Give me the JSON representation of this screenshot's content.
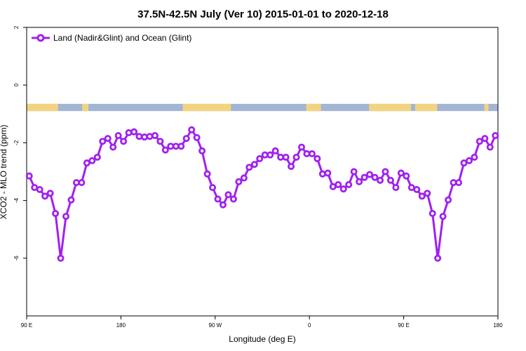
{
  "chart_data": {
    "type": "line",
    "title": "37.5N-42.5N July (Ver 10)   2015-01-01 to 2020-12-18",
    "xlabel": "Longitude (deg E)",
    "ylabel": "XCO2 - MLO trend (ppm)",
    "xlim": [
      90,
      540
    ],
    "ylim": [
      -8,
      2
    ],
    "x_ticks": [
      {
        "value": 90,
        "label": "90 E"
      },
      {
        "value": 180,
        "label": "180"
      },
      {
        "value": 270,
        "label": "90 W"
      },
      {
        "value": 360,
        "label": "0"
      },
      {
        "value": 450,
        "label": "90 E"
      },
      {
        "value": 540,
        "label": "180"
      }
    ],
    "y_ticks": [
      {
        "value": 2,
        "label": "2"
      },
      {
        "value": 0,
        "label": "0"
      },
      {
        "value": -2,
        "label": "-2"
      },
      {
        "value": -4,
        "label": "-4"
      },
      {
        "value": -6,
        "label": "-6"
      }
    ],
    "legend": {
      "placement": "top-left"
    },
    "series": [
      {
        "name": "Land (Nadir&Glint) and Ocean (Glint)",
        "color": "#a020f0",
        "x": [
          92.5,
          97.5,
          102.5,
          107.5,
          112.5,
          117.5,
          122.5,
          127.5,
          132.5,
          137.5,
          142.5,
          147.5,
          152.5,
          157.5,
          162.5,
          167.5,
          172.5,
          177.5,
          182.5,
          187.5,
          192.5,
          197.5,
          202.5,
          207.5,
          212.5,
          217.5,
          222.5,
          227.5,
          232.5,
          237.5,
          242.5,
          247.5,
          252.5,
          257.5,
          262.5,
          267.5,
          272.5,
          277.5,
          282.5,
          287.5,
          292.5,
          297.5,
          302.5,
          307.5,
          312.5,
          317.5,
          322.5,
          327.5,
          332.5,
          337.5,
          342.5,
          347.5,
          352.5,
          357.5,
          362.5,
          367.5,
          372.5,
          377.5,
          382.5,
          387.5,
          392.5,
          397.5,
          402.5,
          407.5,
          412.5,
          417.5,
          422.5,
          427.5,
          432.5,
          437.5,
          442.5,
          447.5,
          452.5,
          457.5,
          462.5,
          467.5,
          472.5,
          477.5,
          482.5,
          487.5,
          492.5,
          497.5,
          502.5,
          507.5,
          512.5,
          517.5,
          522.5,
          527.5,
          532.5,
          537.5
        ],
        "values": [
          -3.15,
          -3.55,
          -3.62,
          -3.85,
          -3.75,
          -4.45,
          -6.0,
          -4.55,
          -3.98,
          -3.38,
          -3.38,
          -2.7,
          -2.62,
          -2.5,
          -1.95,
          -1.85,
          -2.15,
          -1.75,
          -1.95,
          -1.65,
          -1.62,
          -1.78,
          -1.8,
          -1.78,
          -1.75,
          -1.95,
          -2.25,
          -2.12,
          -2.12,
          -2.12,
          -1.85,
          -1.55,
          -1.82,
          -2.28,
          -3.08,
          -3.55,
          -3.95,
          -4.15,
          -3.8,
          -3.95,
          -3.35,
          -3.22,
          -2.85,
          -2.75,
          -2.55,
          -2.42,
          -2.42,
          -2.28,
          -2.5,
          -2.5,
          -2.82,
          -2.5,
          -2.15,
          -2.38,
          -2.38,
          -2.55,
          -3.08,
          -3.05,
          -3.52,
          -3.45,
          -3.6,
          -3.45,
          -3.0,
          -3.35,
          -3.2,
          -3.1,
          -3.2,
          -3.3,
          -3.0,
          -3.3,
          -3.55,
          -3.05,
          -3.15,
          -3.55,
          -3.62,
          -3.85,
          -3.75,
          -4.45,
          -6.0,
          -4.55,
          -3.98,
          -3.38,
          -3.38,
          -2.7,
          -2.62,
          -2.5,
          -1.95,
          -1.85,
          -2.15,
          -1.75
        ]
      }
    ],
    "surface_band": {
      "y_top": -0.65,
      "y_bottom": -0.9,
      "ocean_color": "#a2b5d5",
      "land_color": "#f2d480",
      "land_segments": [
        [
          90,
          120
        ],
        [
          143,
          149
        ],
        [
          239,
          285
        ],
        [
          357,
          371
        ],
        [
          417,
          457
        ],
        [
          461,
          482
        ],
        [
          527,
          531
        ]
      ]
    }
  }
}
